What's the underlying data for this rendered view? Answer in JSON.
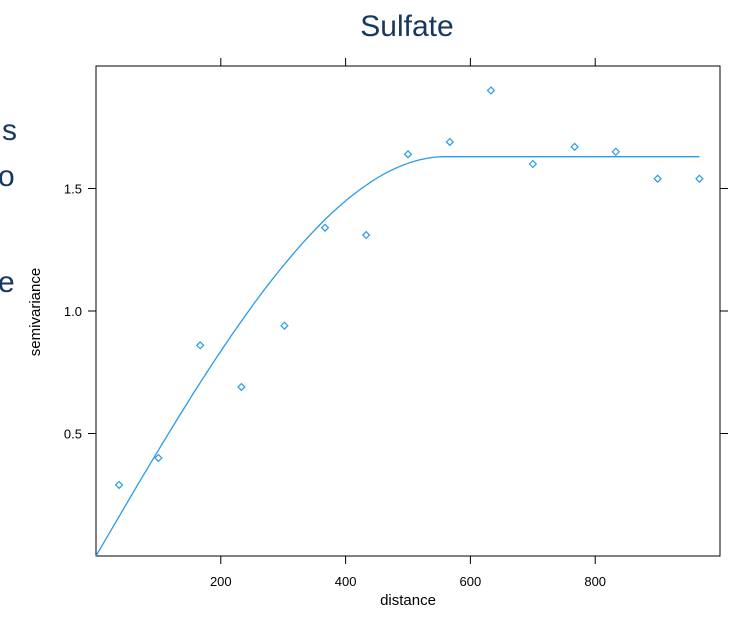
{
  "left_text_fragments": [
    "s",
    "o",
    "e"
  ],
  "chart_data": {
    "type": "scatter",
    "title": "Sulfate",
    "xlabel": "distance",
    "ylabel": "semivariance",
    "xlim": [
      0,
      1000
    ],
    "ylim": [
      0,
      2.0
    ],
    "xticks": [
      200,
      400,
      600,
      800
    ],
    "yticks": [
      0.5,
      1.0,
      1.5
    ],
    "xtick_labels": [
      "200",
      "400",
      "600",
      "800"
    ],
    "ytick_labels": [
      "0.5",
      "1.0",
      "1.5"
    ],
    "grid": false,
    "point_color": "#2b9be6",
    "line_color": "#2b9be6",
    "points": [
      {
        "x": 37,
        "y": 0.29
      },
      {
        "x": 100,
        "y": 0.4
      },
      {
        "x": 167,
        "y": 0.86
      },
      {
        "x": 233,
        "y": 0.69
      },
      {
        "x": 302,
        "y": 0.94
      },
      {
        "x": 367,
        "y": 1.34
      },
      {
        "x": 433,
        "y": 1.31
      },
      {
        "x": 500,
        "y": 1.64
      },
      {
        "x": 567,
        "y": 1.69
      },
      {
        "x": 633,
        "y": 1.9
      },
      {
        "x": 700,
        "y": 1.6
      },
      {
        "x": 767,
        "y": 1.67
      },
      {
        "x": 833,
        "y": 1.65
      },
      {
        "x": 900,
        "y": 1.54
      },
      {
        "x": 967,
        "y": 1.54
      }
    ],
    "fitted_model": {
      "model": "spherical",
      "nugget": 0.0,
      "sill": 1.63,
      "range": 560,
      "x_max": 967
    }
  }
}
